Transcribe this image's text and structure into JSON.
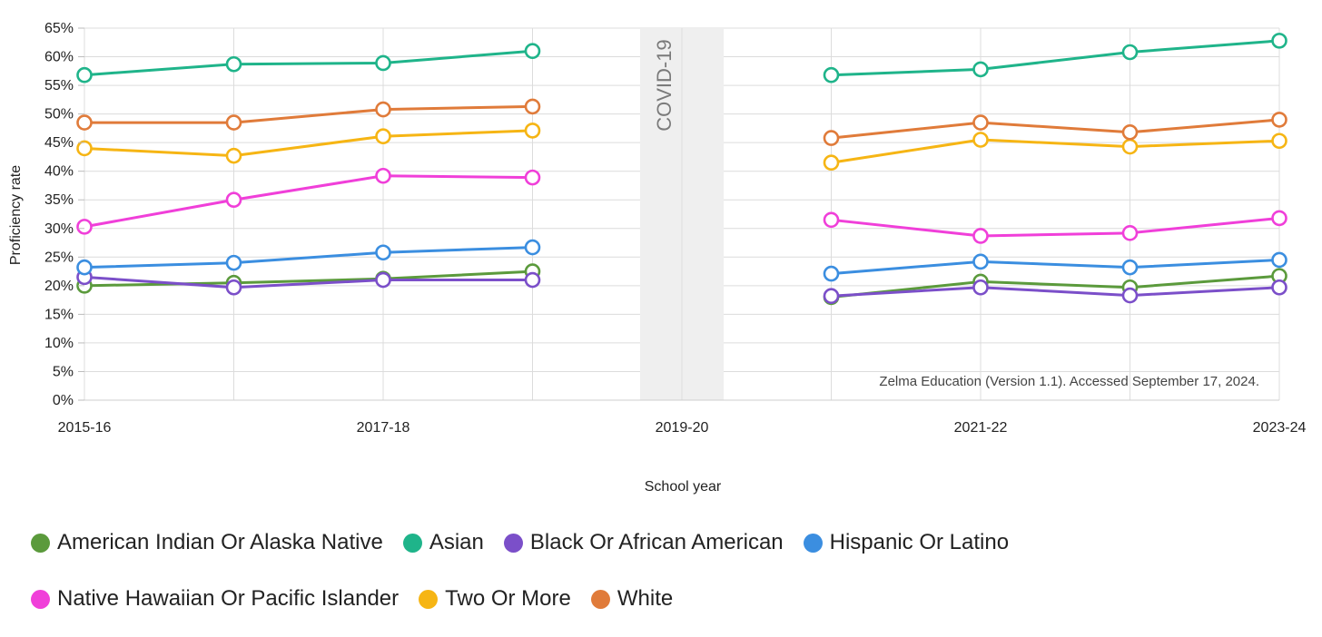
{
  "chart_data": {
    "type": "line",
    "xlabel": "School year",
    "ylabel": "Proficiency rate",
    "x": [
      "2015-16",
      "2016-17",
      "2017-18",
      "2018-19",
      "2019-20",
      "2020-21",
      "2021-22",
      "2022-23",
      "2023-24"
    ],
    "x_tick_labels": [
      "2015-16",
      "2017-18",
      "2019-20",
      "2021-22",
      "2023-24"
    ],
    "y_ticks": [
      "0%",
      "5%",
      "10%",
      "15%",
      "20%",
      "25%",
      "30%",
      "35%",
      "40%",
      "45%",
      "50%",
      "55%",
      "60%",
      "65%"
    ],
    "ylim": [
      0,
      65
    ],
    "grid": true,
    "legend_position": "bottom",
    "annotation_band": {
      "x": "2019-20",
      "label": "COVID-19"
    },
    "source_note": "Zelma Education (Version 1.1). Accessed September 17, 2024.",
    "series": [
      {
        "name": "American Indian Or Alaska Native",
        "color": "#5b9a3c",
        "values": [
          20.0,
          20.5,
          21.2,
          22.5,
          null,
          18.0,
          20.7,
          19.7,
          21.7
        ]
      },
      {
        "name": "Asian",
        "color": "#1fb48a",
        "values": [
          56.8,
          58.7,
          58.9,
          61.0,
          null,
          56.8,
          57.8,
          60.8,
          62.8
        ]
      },
      {
        "name": "Black Or African American",
        "color": "#7b4fc9",
        "values": [
          21.5,
          19.7,
          21.0,
          21.0,
          null,
          18.2,
          19.7,
          18.3,
          19.7
        ]
      },
      {
        "name": "Hispanic Or Latino",
        "color": "#3b8ee0",
        "values": [
          23.2,
          24.0,
          25.8,
          26.7,
          null,
          22.1,
          24.2,
          23.2,
          24.5
        ]
      },
      {
        "name": "Native Hawaiian Or Pacific Islander",
        "color": "#f03fd9",
        "values": [
          30.3,
          35.0,
          39.2,
          38.9,
          null,
          31.5,
          28.7,
          29.2,
          31.8
        ]
      },
      {
        "name": "Two Or More",
        "color": "#f6b514",
        "values": [
          44.0,
          42.7,
          46.1,
          47.1,
          null,
          41.5,
          45.5,
          44.3,
          45.3
        ]
      },
      {
        "name": "White",
        "color": "#e07b3a",
        "values": [
          48.5,
          48.5,
          50.8,
          51.3,
          null,
          45.8,
          48.5,
          46.8,
          49.0
        ]
      }
    ]
  }
}
